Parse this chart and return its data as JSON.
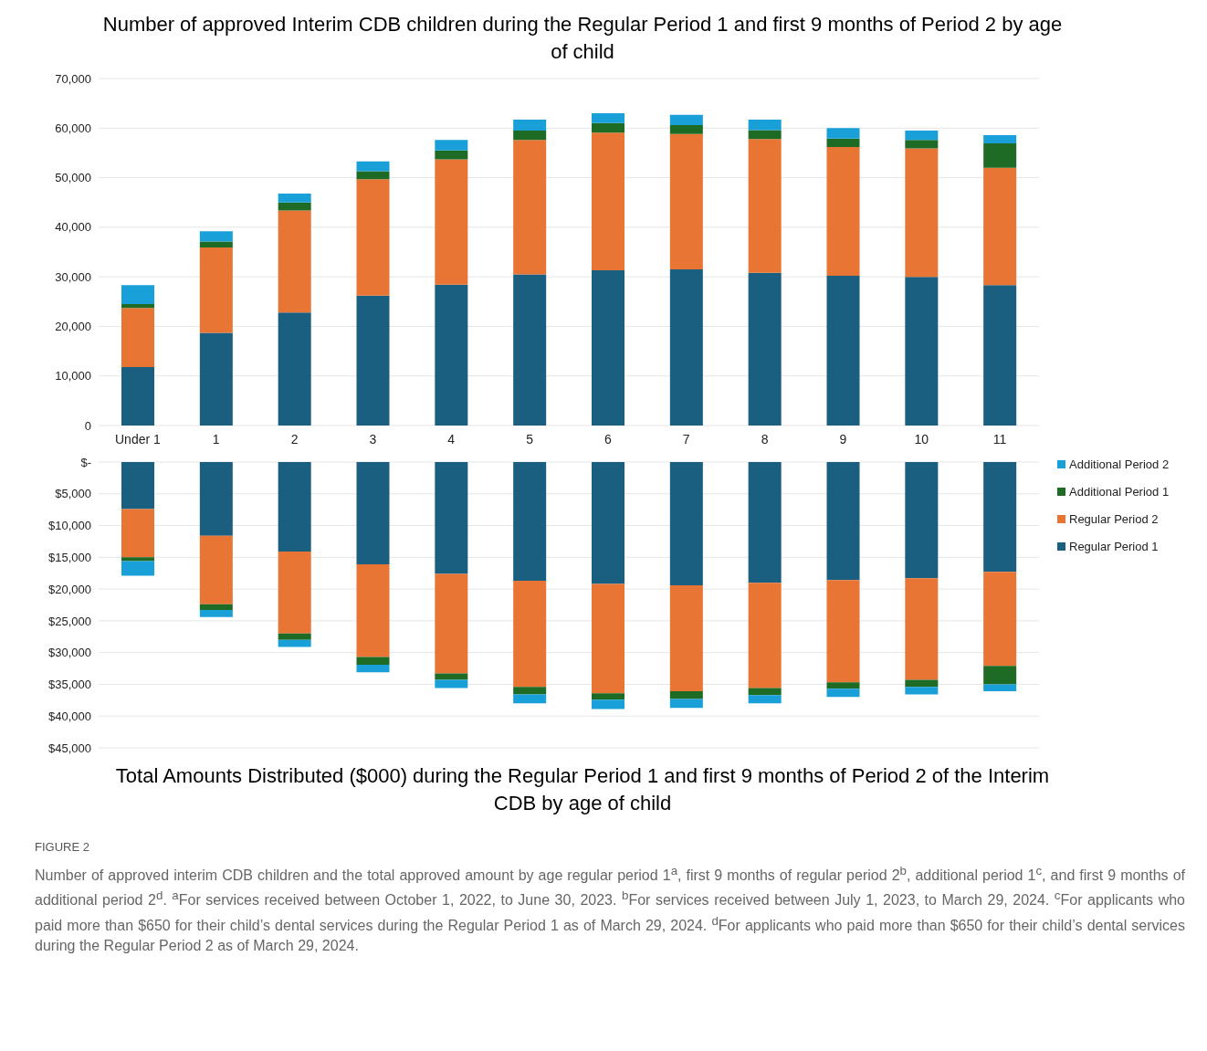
{
  "chart_data": [
    {
      "type": "bar",
      "title": "Number of approved Interim CDB children during the Regular Period 1 and first 9 months of Period 2 by age of child",
      "stacked": true,
      "categories": [
        "Under 1",
        "1",
        "2",
        "3",
        "4",
        "5",
        "6",
        "7",
        "8",
        "9",
        "10",
        "11"
      ],
      "series": [
        {
          "name": "Regular Period 1",
          "color": "#1a5e80",
          "values": [
            11800,
            18700,
            22800,
            26200,
            28400,
            30500,
            31300,
            31500,
            30800,
            30200,
            30000,
            28300
          ]
        },
        {
          "name": "Regular Period 2",
          "color": "#e87533",
          "values": [
            11900,
            17200,
            20600,
            23500,
            25300,
            27100,
            27800,
            27300,
            27000,
            26000,
            25900,
            23700
          ]
        },
        {
          "name": "Additional Period 1",
          "color": "#1e6b25",
          "values": [
            800,
            1200,
            1600,
            1600,
            1800,
            1900,
            1900,
            1800,
            1800,
            1700,
            1700,
            4900
          ]
        },
        {
          "name": "Additional Period 2",
          "color": "#1aa0d8",
          "values": [
            3800,
            2100,
            1800,
            2000,
            2100,
            2200,
            2000,
            2100,
            2100,
            2100,
            1900,
            1700
          ]
        }
      ],
      "ylim": [
        0,
        70000
      ],
      "yticks": [
        0,
        {
          "value": 10000,
          "label": "10,000"
        },
        {
          "value": 20000,
          "label": "20,000"
        },
        {
          "value": 30000,
          "label": "30,000"
        },
        {
          "value": 40000,
          "label": "40,000"
        },
        {
          "value": 50000,
          "label": "50,000"
        },
        {
          "value": 60000,
          "label": "60,000"
        },
        {
          "value": 70000,
          "label": "70,000"
        }
      ],
      "grid": "y",
      "legend": "bottom right"
    },
    {
      "type": "bar",
      "title": "Total Amounts Distributed ($000) during the Regular Period 1 and first 9 months of Period 2 of the Interim CDB by age of child",
      "stacked": true,
      "categories": [
        null,
        null,
        null,
        null,
        null,
        null,
        null,
        null,
        null,
        null,
        null,
        null
      ],
      "series": [
        {
          "color": "#1a5e80",
          "values": [
            7400,
            11600,
            14100,
            16100,
            17600,
            18700,
            19200,
            19400,
            19000,
            18600,
            18300,
            17300
          ]
        },
        {
          "color": "#e87533",
          "values": [
            7600,
            10800,
            12900,
            14600,
            15700,
            16700,
            17200,
            16700,
            16600,
            16100,
            16000,
            14800
          ]
        },
        {
          "color": "#1e6b25",
          "values": [
            600,
            900,
            1000,
            1200,
            1000,
            1200,
            1000,
            1200,
            1100,
            1000,
            1100,
            2900
          ]
        },
        {
          "color": "#1aa0d8",
          "values": [
            2300,
            1100,
            1100,
            1200,
            1300,
            1400,
            1500,
            1400,
            1300,
            1300,
            1200,
            1100
          ]
        }
      ],
      "ylim": [
        45000,
        0
      ],
      "yticks": [
        {
          "value": 0,
          "label": "$-"
        },
        {
          "value": 5000,
          "label": "$5,000"
        },
        {
          "value": 10000,
          "label": "$10,000"
        },
        {
          "value": 15000,
          "label": "$15,000"
        },
        {
          "value": 20000,
          "label": "$20,000"
        },
        {
          "value": 25000,
          "label": "$25,000"
        },
        {
          "value": 30000,
          "label": "$30,000"
        },
        {
          "value": 35000,
          "label": "$35,000"
        },
        {
          "value": 40000,
          "label": "$40,000"
        },
        {
          "value": 45000,
          "label": "$45,000"
        }
      ],
      "tick_labels": "y",
      "grid": "y",
      "annotations": [
        "FIGURE 2",
        "Number of approved interim CDB children and the total approved amount by age regular period 1$^{a}$, first 9 months of regular period 2$^{b}$, additional period 1$^{c}$, and first 9 months of additional period 2$^{d}$. $^{a}$For services received between October 1, 2022, to June 30, 2023. $^{b}$For services received between July 1, 2023, to March 29, 2024. $^{c}$For applicants who paid more than $650 for their child’s dental services during the Regular Period 1 as of March 29, 2024. $^{d}$For applicants who paid more than $650 for their child’s dental services during the Regular Period 2 as of March 29, 2024."
      ]
    }
  ]
}
